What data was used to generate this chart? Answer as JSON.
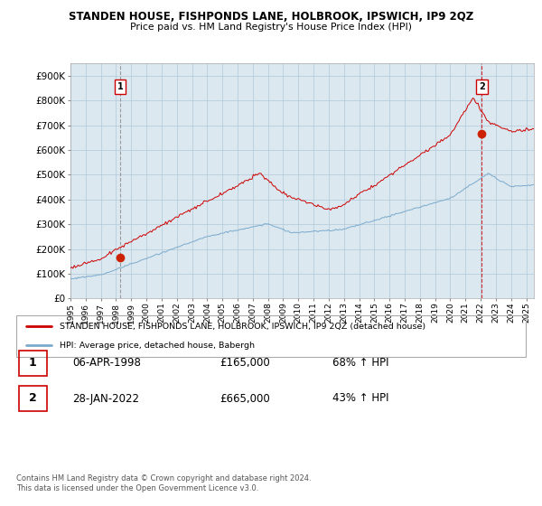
{
  "title": "STANDEN HOUSE, FISHPONDS LANE, HOLBROOK, IPSWICH, IP9 2QZ",
  "subtitle": "Price paid vs. HM Land Registry's House Price Index (HPI)",
  "ylabel_ticks": [
    "£0",
    "£100K",
    "£200K",
    "£300K",
    "£400K",
    "£500K",
    "£600K",
    "£700K",
    "£800K",
    "£900K"
  ],
  "ytick_values": [
    0,
    100000,
    200000,
    300000,
    400000,
    500000,
    600000,
    700000,
    800000,
    900000
  ],
  "ylim": [
    0,
    950000
  ],
  "xlim_start": 1995.0,
  "xlim_end": 2025.5,
  "sale1_date": 1998.27,
  "sale1_price": 165000,
  "sale2_date": 2022.08,
  "sale2_price": 665000,
  "line_color_red": "#cc0000",
  "line_color_blue": "#7aaacc",
  "marker_color_sale1": "#cc2200",
  "marker_color_sale2": "#cc2200",
  "vline1_color": "#888888",
  "vline2_color": "#cc0000",
  "chart_bg": "#dce8f0",
  "legend_line1": "STANDEN HOUSE, FISHPONDS LANE, HOLBROOK, IPSWICH, IP9 2QZ (detached house)",
  "legend_line2": "HPI: Average price, detached house, Babergh",
  "table_row1": [
    "1",
    "06-APR-1998",
    "£165,000",
    "68% ↑ HPI"
  ],
  "table_row2": [
    "2",
    "28-JAN-2022",
    "£665,000",
    "43% ↑ HPI"
  ],
  "footnote": "Contains HM Land Registry data © Crown copyright and database right 2024.\nThis data is licensed under the Open Government Licence v3.0.",
  "background_color": "#ffffff",
  "grid_color": "#b0c8d8"
}
